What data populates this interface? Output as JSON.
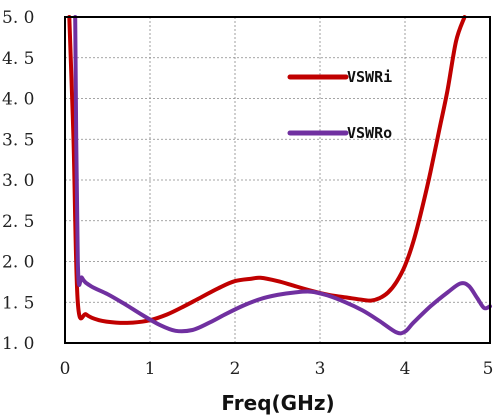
{
  "chart_data": {
    "type": "line",
    "xlabel": "Freq(GHz)",
    "ylabel": "",
    "xlim": [
      0,
      5
    ],
    "ylim": [
      1.0,
      5.0
    ],
    "x_ticks": [
      "0",
      "1",
      "2",
      "3",
      "4",
      "5"
    ],
    "y_ticks": [
      "5. 0",
      "4. 5",
      "4. 0",
      "3. 5",
      "3. 0",
      "2. 5",
      "2. 0",
      "1. 5",
      "1. 0"
    ],
    "grid": true,
    "legend_position": "upper-right",
    "series": [
      {
        "name": "VSWRi",
        "color": "#c00000",
        "points": [
          [
            0.05,
            5.0
          ],
          [
            0.1,
            3.5
          ],
          [
            0.15,
            1.5
          ],
          [
            0.25,
            1.35
          ],
          [
            0.4,
            1.28
          ],
          [
            0.6,
            1.25
          ],
          [
            0.8,
            1.25
          ],
          [
            1.0,
            1.28
          ],
          [
            1.2,
            1.35
          ],
          [
            1.4,
            1.45
          ],
          [
            1.6,
            1.56
          ],
          [
            1.8,
            1.67
          ],
          [
            2.0,
            1.76
          ],
          [
            2.2,
            1.79
          ],
          [
            2.3,
            1.8
          ],
          [
            2.5,
            1.76
          ],
          [
            2.7,
            1.7
          ],
          [
            2.9,
            1.64
          ],
          [
            3.1,
            1.59
          ],
          [
            3.3,
            1.56
          ],
          [
            3.5,
            1.53
          ],
          [
            3.6,
            1.52
          ],
          [
            3.7,
            1.55
          ],
          [
            3.8,
            1.62
          ],
          [
            3.9,
            1.75
          ],
          [
            4.0,
            1.95
          ],
          [
            4.1,
            2.25
          ],
          [
            4.2,
            2.65
          ],
          [
            4.3,
            3.1
          ],
          [
            4.4,
            3.6
          ],
          [
            4.5,
            4.1
          ],
          [
            4.6,
            4.7
          ],
          [
            4.7,
            5.0
          ]
        ]
      },
      {
        "name": "VSWRo",
        "color": "#7030a0",
        "points": [
          [
            0.12,
            5.0
          ],
          [
            0.15,
            2.0
          ],
          [
            0.2,
            1.8
          ],
          [
            0.3,
            1.7
          ],
          [
            0.5,
            1.6
          ],
          [
            0.7,
            1.48
          ],
          [
            0.9,
            1.35
          ],
          [
            1.1,
            1.23
          ],
          [
            1.3,
            1.15
          ],
          [
            1.5,
            1.16
          ],
          [
            1.7,
            1.25
          ],
          [
            1.9,
            1.36
          ],
          [
            2.1,
            1.46
          ],
          [
            2.3,
            1.54
          ],
          [
            2.5,
            1.59
          ],
          [
            2.7,
            1.62
          ],
          [
            2.9,
            1.63
          ],
          [
            3.1,
            1.58
          ],
          [
            3.3,
            1.5
          ],
          [
            3.5,
            1.4
          ],
          [
            3.7,
            1.27
          ],
          [
            3.9,
            1.13
          ],
          [
            4.0,
            1.14
          ],
          [
            4.1,
            1.25
          ],
          [
            4.3,
            1.45
          ],
          [
            4.5,
            1.62
          ],
          [
            4.65,
            1.73
          ],
          [
            4.75,
            1.7
          ],
          [
            4.85,
            1.55
          ],
          [
            4.93,
            1.43
          ],
          [
            5.0,
            1.45
          ]
        ]
      }
    ]
  }
}
